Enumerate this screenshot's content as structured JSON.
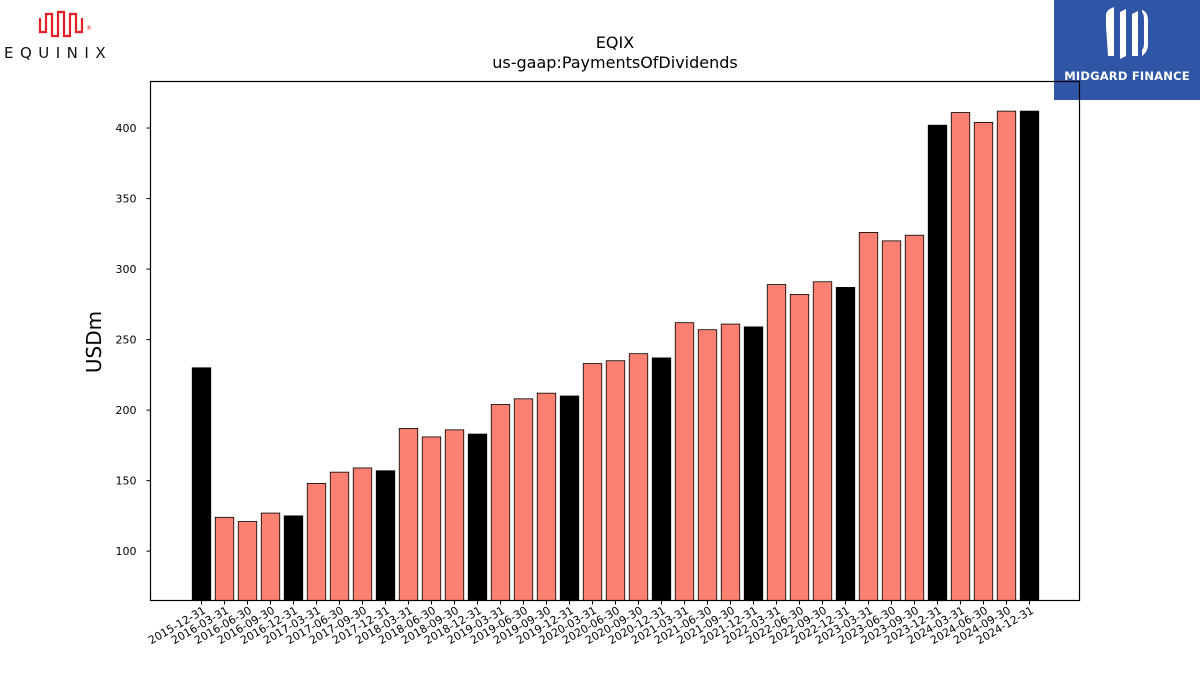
{
  "logos": {
    "left_wordmark": "EQUINIX",
    "left_mark_text": "®",
    "right_wordmark": "MIDGARD FINANCE"
  },
  "colors": {
    "annual_bar": "#000000",
    "quarterly_bar": "#fa8072",
    "bar_edge": "#000000",
    "right_logo_bg": "#2f56a6",
    "left_logo_red": "#e31e24"
  },
  "chart_data": {
    "type": "bar",
    "title": "EQIX",
    "subtitle": "us-gaap:PaymentsOfDividends",
    "xlabel": "",
    "ylabel": "USDm",
    "ylim": [
      65,
      433
    ],
    "yticks": [
      100,
      150,
      200,
      250,
      300,
      350,
      400
    ],
    "grid": false,
    "categories": [
      "2015-12-31",
      "2016-03-31",
      "2016-06-30",
      "2016-09-30",
      "2016-12-31",
      "2017-03-31",
      "2017-06-30",
      "2017-09-30",
      "2017-12-31",
      "2018-03-31",
      "2018-06-30",
      "2018-09-30",
      "2018-12-31",
      "2019-03-31",
      "2019-06-30",
      "2019-09-30",
      "2019-12-31",
      "2020-03-31",
      "2020-06-30",
      "2020-09-30",
      "2020-12-31",
      "2021-03-31",
      "2021-06-30",
      "2021-09-30",
      "2021-12-31",
      "2022-03-31",
      "2022-06-30",
      "2022-09-30",
      "2022-12-31",
      "2023-03-31",
      "2023-06-30",
      "2023-09-30",
      "2023-12-31",
      "2024-03-31",
      "2024-06-30",
      "2024-09-30",
      "2024-12-31"
    ],
    "values": [
      230,
      124,
      121,
      127,
      125,
      148,
      156,
      159,
      157,
      187,
      181,
      186,
      183,
      204,
      208,
      212,
      210,
      233,
      235,
      240,
      237,
      262,
      257,
      261,
      259,
      289,
      282,
      291,
      287,
      326,
      320,
      324,
      402,
      411,
      404,
      412,
      412
    ],
    "annual": [
      true,
      false,
      false,
      false,
      true,
      false,
      false,
      false,
      true,
      false,
      false,
      false,
      true,
      false,
      false,
      false,
      true,
      false,
      false,
      false,
      true,
      false,
      false,
      false,
      true,
      false,
      false,
      false,
      true,
      false,
      false,
      false,
      true,
      false,
      false,
      false,
      true
    ]
  }
}
